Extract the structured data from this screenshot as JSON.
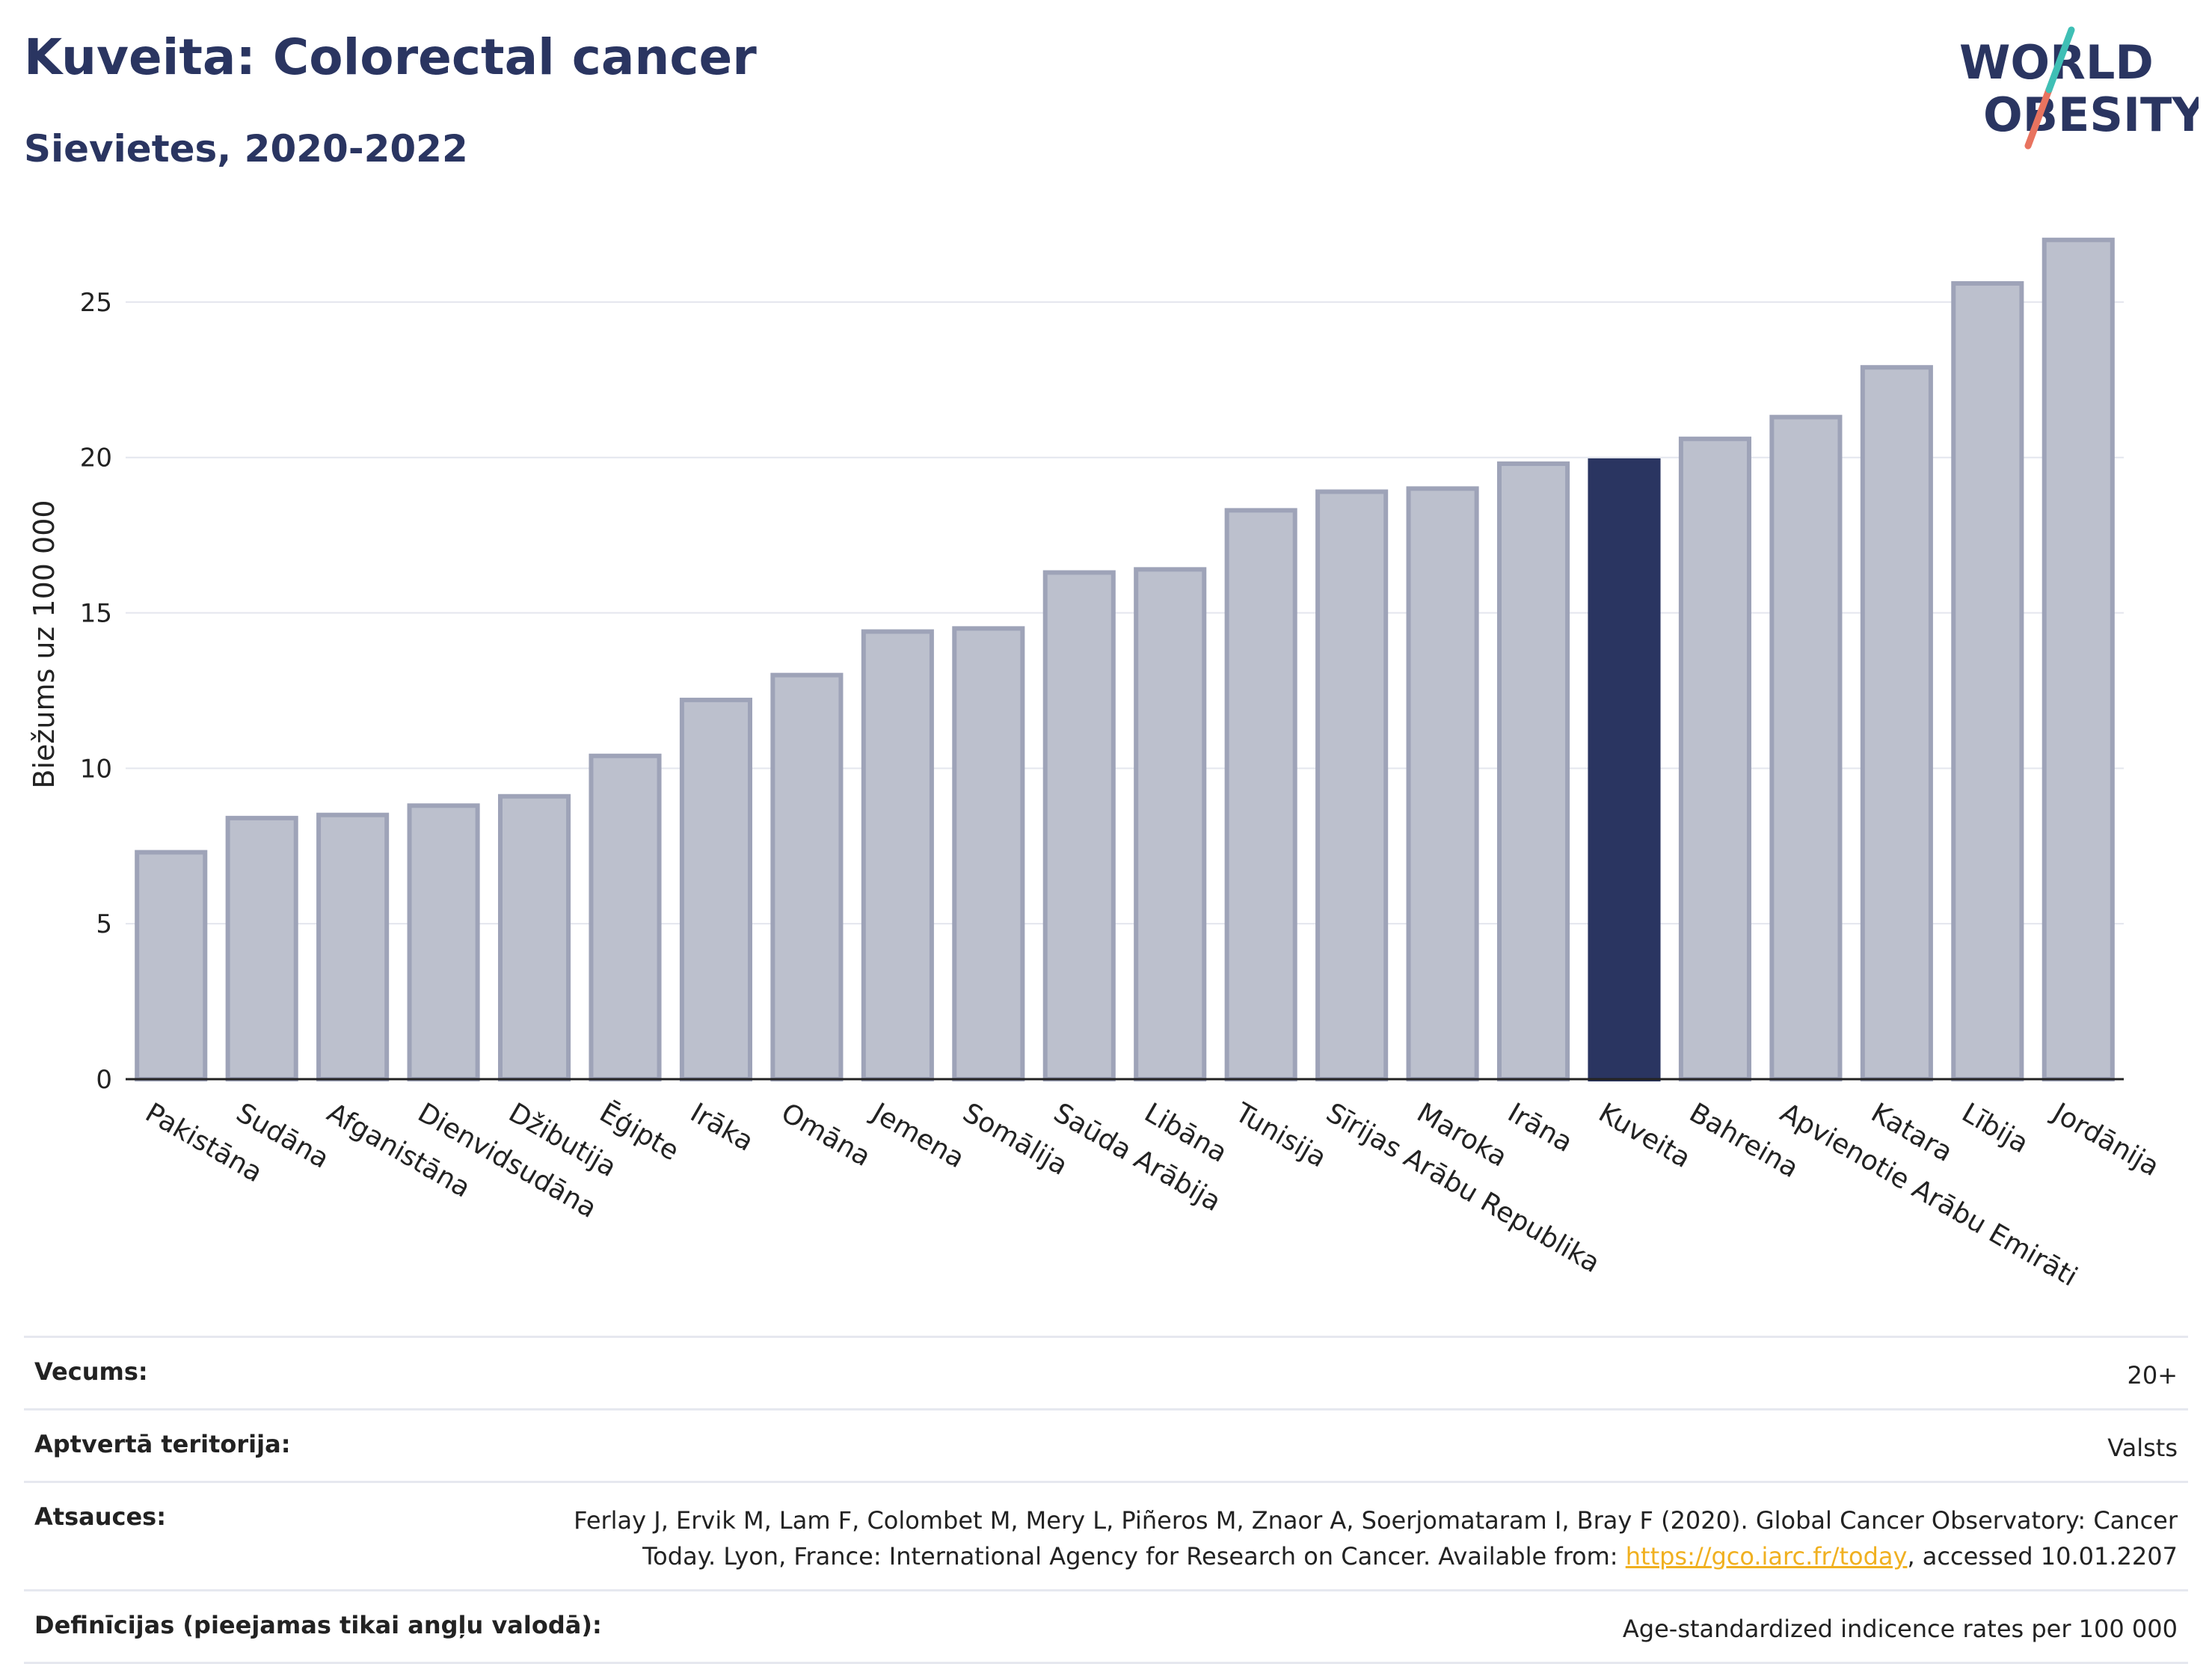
{
  "header": {
    "title": "Kuveita: Colorectal cancer",
    "subtitle": "Sievietes, 2020-2022"
  },
  "logo": {
    "line1": "WORLD",
    "line2": "OBESITY"
  },
  "chart_data": {
    "type": "bar",
    "ylabel": "Biežums uz 100 000",
    "ylim": [
      0,
      27.5
    ],
    "yticks": [
      0,
      5,
      10,
      15,
      20,
      25
    ],
    "grid": true,
    "highlight": "Kuveita",
    "colors": {
      "bar": "#bcc0cd",
      "bar_border": "#9ea3b8",
      "highlight": "#2a3561",
      "grid": "#e4e6ee"
    },
    "categories": [
      "Pakistāna",
      "Sudāna",
      "Afganistāna",
      "Dienvidsudāna",
      "Džibutija",
      "Ēģipte",
      "Irāka",
      "Omāna",
      "Jemena",
      "Somālija",
      "Saūda Arābija",
      "Libāna",
      "Tunisija",
      "Sīrijas Arābu Republika",
      "Maroka",
      "Irāna",
      "Kuveita",
      "Bahreina",
      "Apvienotie Arābu Emirāti",
      "Katara",
      "Lībija",
      "Jordānija"
    ],
    "values": [
      7.3,
      8.4,
      8.5,
      8.8,
      9.1,
      10.4,
      12.2,
      13.0,
      14.4,
      14.5,
      16.3,
      16.4,
      18.3,
      18.9,
      19.0,
      19.8,
      19.9,
      20.6,
      21.3,
      22.9,
      25.6,
      27.0
    ]
  },
  "meta": {
    "age_label": "Vecums:",
    "age_value": "20+",
    "coverage_label": "Aptvertā teritorija:",
    "coverage_value": "Valsts",
    "refs_label": "Atsauces:",
    "refs_line1": "Ferlay J, Ervik M, Lam F, Colombet M, Mery L, Piñeros M, Znaor A, Soerjomataram I, Bray F (2020). Global Cancer Observatory: Cancer",
    "refs_line2a": "Today. Lyon, France: International Agency for Research on Cancer. Available from: ",
    "refs_link": "https://gco.iarc.fr/today",
    "refs_line2b": ", accessed 10.01.2207",
    "definitions_label": "Definīcijas (pieejamas tikai angļu valodā):",
    "definitions_value": "Age-standardized indicence rates per 100 000"
  }
}
